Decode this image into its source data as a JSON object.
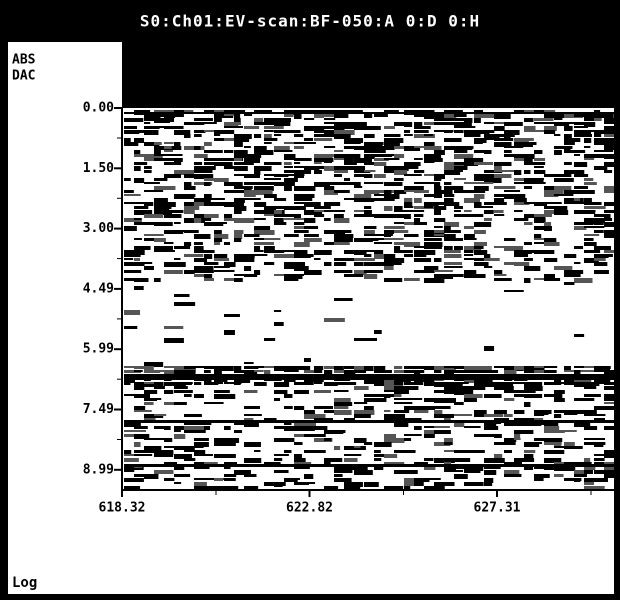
{
  "header": {
    "title": "S0:Ch01:EV-scan:BF-050:A 0:D 0:H"
  },
  "y_axis": {
    "label_lines": [
      "ABS",
      "DAC"
    ],
    "ticks": [
      "0.00",
      "1.50",
      "3.00",
      "4.49",
      "5.99",
      "7.49",
      "8.99"
    ]
  },
  "x_axis": {
    "ticks": [
      "618.32",
      "622.82",
      "627.31"
    ]
  },
  "footer": {
    "mode": "Log"
  }
}
